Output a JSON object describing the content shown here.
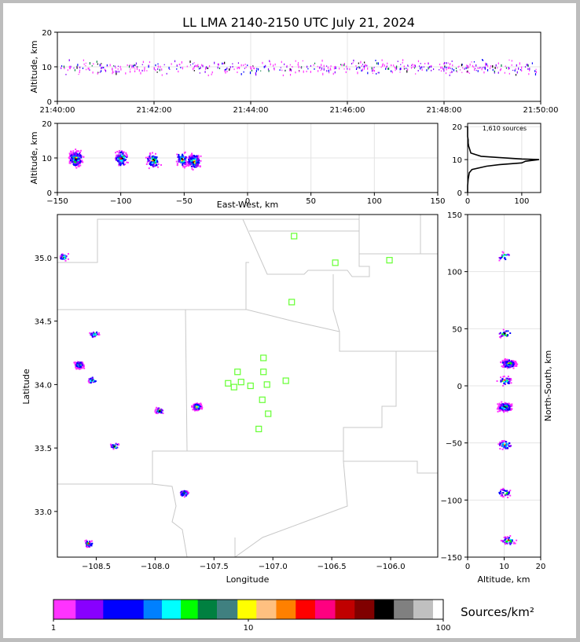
{
  "title": "LL LMA 2140-2150 UTC July 21, 2024",
  "colorbar": {
    "label": "Sources/km²",
    "tick_labels": [
      "1",
      "10",
      "100"
    ],
    "colors": [
      "#ff33ff",
      "#8800ff",
      "#0000ff",
      "#0080ff",
      "#00ffff",
      "#00ff00",
      "#008040",
      "#408080",
      "#ffff00",
      "#ffc080",
      "#ff8000",
      "#ff0000",
      "#ff0080",
      "#c00000",
      "#800000",
      "#000000",
      "#808080",
      "#c0c0c0",
      "#ffffff"
    ],
    "boundaries": [
      1,
      1.3,
      1.8,
      2.9,
      3.6,
      4.5,
      5.5,
      6.9,
      8.8,
      11,
      13.9,
      17.5,
      22,
      27.9,
      35.1,
      44.3,
      55.8,
      70.3,
      88.6,
      100
    ]
  },
  "chart_data": [
    {
      "id": "time_height",
      "type": "scatter",
      "ylabel": "Altitude, km",
      "xlabel": "",
      "x_tick_labels": [
        "21:40:00",
        "21:42:00",
        "21:44:00",
        "21:46:00",
        "21:48:00",
        "21:50:00"
      ],
      "y_tick_labels": [
        "0",
        "10",
        "20"
      ],
      "xlim": [
        "21:40:00",
        "21:50:00"
      ],
      "ylim": [
        0,
        20
      ],
      "grid": true,
      "note_values": "source altitudes vs time, clustered near 10 km"
    },
    {
      "id": "ew_height",
      "type": "scatter",
      "xlabel": "East-West, km",
      "ylabel": "Altitude, km",
      "x_tick_labels": [
        "−150",
        "−100",
        "−50",
        "0",
        "50",
        "100",
        "150"
      ],
      "y_tick_labels": [
        "0",
        "10",
        "20"
      ],
      "xlim": [
        -150,
        150
      ],
      "ylim": [
        0,
        20
      ],
      "grid": true,
      "clusters": [
        {
          "x": -136,
          "y": 10,
          "count": 300
        },
        {
          "x": -100,
          "y": 10,
          "count": 120
        },
        {
          "x": -75,
          "y": 9.5,
          "count": 90
        },
        {
          "x": -52,
          "y": 9.8,
          "count": 80
        },
        {
          "x": -43,
          "y": 9.2,
          "count": 200
        }
      ]
    },
    {
      "id": "altitude_histogram",
      "type": "line",
      "annotation": "1,610 sources",
      "x_tick_labels": [
        "0",
        "100"
      ],
      "y_tick_labels": [
        "0",
        "10",
        "20"
      ],
      "xlim": [
        0,
        135
      ],
      "ylim": [
        0,
        21
      ],
      "points": [
        [
          0,
          0
        ],
        [
          0,
          2
        ],
        [
          1,
          4
        ],
        [
          3,
          6
        ],
        [
          8,
          7
        ],
        [
          35,
          8
        ],
        [
          60,
          8.5
        ],
        [
          100,
          9
        ],
        [
          107,
          9.5
        ],
        [
          132,
          10
        ],
        [
          100,
          10.2
        ],
        [
          60,
          10.6
        ],
        [
          25,
          11
        ],
        [
          15,
          11.5
        ],
        [
          6,
          12
        ],
        [
          4,
          13
        ],
        [
          2,
          14
        ],
        [
          1,
          15
        ],
        [
          1,
          16
        ],
        [
          0,
          17
        ],
        [
          0,
          20
        ]
      ]
    },
    {
      "id": "plan_view",
      "type": "scatter",
      "xlabel": "Longitude",
      "ylabel": "Latitude",
      "x_tick_labels": [
        "−108.5",
        "−108.0",
        "−107.5",
        "−107.0",
        "−106.5",
        "−106.0"
      ],
      "y_tick_labels": [
        "33.0",
        "33.5",
        "34.0",
        "34.5",
        "35.0"
      ],
      "xlim": [
        -108.83,
        -105.6
      ],
      "ylim": [
        32.64,
        35.34
      ],
      "stations": [
        {
          "lon": -106.82,
          "lat": 35.17
        },
        {
          "lon": -106.47,
          "lat": 34.96
        },
        {
          "lon": -106.01,
          "lat": 34.98
        },
        {
          "lon": -106.84,
          "lat": 34.65
        },
        {
          "lon": -107.08,
          "lat": 34.21
        },
        {
          "lon": -107.3,
          "lat": 34.1
        },
        {
          "lon": -107.08,
          "lat": 34.1
        },
        {
          "lon": -107.38,
          "lat": 34.01
        },
        {
          "lon": -107.27,
          "lat": 34.02
        },
        {
          "lon": -107.33,
          "lat": 33.98
        },
        {
          "lon": -107.19,
          "lat": 33.99
        },
        {
          "lon": -107.05,
          "lat": 34.0
        },
        {
          "lon": -106.89,
          "lat": 34.03
        },
        {
          "lon": -107.09,
          "lat": 33.88
        },
        {
          "lon": -107.04,
          "lat": 33.77
        },
        {
          "lon": -107.12,
          "lat": 33.65
        }
      ],
      "clusters": [
        {
          "lon": -108.78,
          "lat": 35.01,
          "count": 30
        },
        {
          "lon": -108.52,
          "lat": 34.4,
          "count": 40
        },
        {
          "lon": -108.65,
          "lat": 34.16,
          "count": 250
        },
        {
          "lon": -108.54,
          "lat": 34.04,
          "count": 30
        },
        {
          "lon": -107.97,
          "lat": 33.8,
          "count": 40
        },
        {
          "lon": -107.65,
          "lat": 33.83,
          "count": 220
        },
        {
          "lon": -108.35,
          "lat": 33.52,
          "count": 30
        },
        {
          "lon": -107.76,
          "lat": 33.15,
          "count": 60
        },
        {
          "lon": -108.57,
          "lat": 32.75,
          "count": 40
        }
      ]
    },
    {
      "id": "ns_height",
      "type": "scatter",
      "xlabel": "Altitude, km",
      "ylabel": "North-South, km",
      "x_tick_labels": [
        "0",
        "10",
        "20"
      ],
      "y_tick_labels": [
        "−150",
        "−100",
        "−50",
        "0",
        "50",
        "100",
        "150"
      ],
      "xlim": [
        0,
        20
      ],
      "ylim": [
        -150,
        150
      ],
      "clusters": [
        {
          "x": 10,
          "y": 114,
          "count": 20
        },
        {
          "x": 10,
          "y": 46,
          "count": 30
        },
        {
          "x": 11,
          "y": 20,
          "count": 200
        },
        {
          "x": 10,
          "y": 5,
          "count": 40
        },
        {
          "x": 10,
          "y": -18,
          "count": 250
        },
        {
          "x": 10,
          "y": -51,
          "count": 60
        },
        {
          "x": 10,
          "y": -93,
          "count": 40
        },
        {
          "x": 11,
          "y": -135,
          "count": 50
        }
      ]
    }
  ]
}
